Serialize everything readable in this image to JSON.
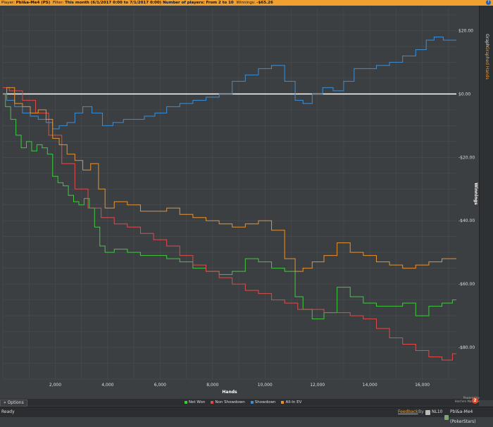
{
  "topbar": {
    "player_label": "Player:",
    "player_value": "Pbl&a-Me4 (PS)",
    "filter_label": "Filter:",
    "filter_value": "This month (6/1/2017 0:00 to 7/1/2017 0:00) Number of players: From 2 to 10",
    "winnings_label": "Winnings:",
    "winnings_value": "-$65.26",
    "help_icon": "?"
  },
  "rightbar": {
    "graph_tab": "Graph",
    "graphed_tab": "Graphed Hands"
  },
  "options_label": "Options",
  "hm_logo_text_1": "Powered by",
  "hm_logo_text_2": "Hold'em Manager",
  "hm_badge": "2",
  "status": {
    "ready": "Ready",
    "feedback": "Feedback",
    "by": "By",
    "site_label": "NL10",
    "player_label": "Pbl&a-Me4 (PokerStars)"
  },
  "chart_data": {
    "type": "line",
    "xlabel": "Hands",
    "ylabel": "Winnings",
    "xlim": [
      0,
      17300
    ],
    "ylim": [
      -90,
      27
    ],
    "x_ticks": [
      2000,
      4000,
      6000,
      8000,
      10000,
      12000,
      14000,
      16000
    ],
    "x_tick_labels": [
      "2,000",
      "4,000",
      "6,000",
      "8,000",
      "10,000",
      "12,000",
      "14,000",
      "16,000"
    ],
    "y_ticks": [
      20,
      0,
      -20,
      -40,
      -60,
      -80
    ],
    "y_tick_labels": [
      "$20.00",
      "$0.00",
      "-$20.00",
      "-$40.00",
      "-$60.00",
      "-$80.00"
    ],
    "grid": true,
    "legend": "bottom-center",
    "series": [
      {
        "name": "Net Won",
        "color": "#3ccc3c",
        "x": [
          0,
          200,
          400,
          600,
          800,
          1000,
          1200,
          1400,
          1600,
          1800,
          2000,
          2200,
          2400,
          2600,
          2800,
          3000,
          3200,
          3400,
          3600,
          3800,
          4000,
          4500,
          5000,
          5500,
          6000,
          6500,
          7000,
          7500,
          8000,
          8500,
          9000,
          9500,
          10000,
          10500,
          11000,
          11300,
          11600,
          12000,
          12500,
          13000,
          13500,
          14000,
          14500,
          15000,
          15500,
          16000,
          16500,
          17000,
          17300
        ],
        "y": [
          0,
          -4,
          -8,
          -13,
          -17,
          -15,
          -18,
          -16,
          -17,
          -19,
          -26,
          -28,
          -29,
          -32,
          -34,
          -35,
          -33,
          -36,
          -42,
          -48,
          -50,
          -49,
          -50,
          -51,
          -51,
          -52,
          -53,
          -55,
          -56,
          -57,
          -56,
          -52,
          -53,
          -55,
          -56,
          -64,
          -68,
          -71,
          -69,
          -61,
          -64,
          -66,
          -67,
          -67,
          -66,
          -70,
          -67,
          -66,
          -65
        ]
      },
      {
        "name": "Non Showdown",
        "color": "#e04a4a",
        "x": [
          0,
          500,
          1000,
          1500,
          2000,
          2500,
          3000,
          3500,
          4000,
          4500,
          5000,
          5500,
          6000,
          6500,
          7000,
          7500,
          8000,
          8500,
          9000,
          9500,
          10000,
          10500,
          11000,
          11500,
          12000,
          12500,
          13000,
          13500,
          14000,
          14500,
          15000,
          15500,
          16000,
          16500,
          17000,
          17300
        ],
        "y": [
          2,
          1,
          -2,
          -6,
          -13,
          -22,
          -30,
          -36,
          -39,
          -41,
          -42,
          -44,
          -46,
          -48,
          -51,
          -54,
          -56,
          -58,
          -60,
          -62,
          -63,
          -65,
          -66,
          -68,
          -68,
          -69,
          -69,
          -70,
          -71,
          -74,
          -77,
          -79,
          -81,
          -83,
          -84,
          -82
        ]
      },
      {
        "name": "Showdown",
        "color": "#3a8fd8",
        "x": [
          0,
          300,
          600,
          900,
          1200,
          1500,
          1800,
          2000,
          2300,
          2600,
          2900,
          3200,
          3600,
          4000,
          4400,
          4800,
          5200,
          5600,
          6000,
          6500,
          7000,
          7500,
          8000,
          8500,
          9000,
          9500,
          10000,
          10500,
          11000,
          11300,
          11600,
          12000,
          12400,
          12800,
          13200,
          13600,
          14000,
          14500,
          15000,
          15500,
          16000,
          16300,
          16600,
          17000,
          17300
        ],
        "y": [
          0,
          -2,
          -4,
          -6,
          -7,
          -8,
          -9,
          -11,
          -10,
          -9,
          -6,
          -4,
          -6,
          -10,
          -9,
          -8,
          -8,
          -7,
          -6,
          -4,
          -3,
          -2,
          -1,
          0,
          4,
          6,
          8,
          9,
          4,
          -2,
          -3,
          0,
          2,
          1,
          4,
          8,
          8,
          9,
          10,
          12,
          14,
          17,
          18,
          17,
          17
        ]
      },
      {
        "name": "All-In EV",
        "color": "#e8922e",
        "x": [
          0,
          300,
          600,
          900,
          1200,
          1500,
          1800,
          2000,
          2300,
          2600,
          2900,
          3200,
          3500,
          3800,
          4000,
          4500,
          5000,
          5500,
          6000,
          6500,
          7000,
          7500,
          8000,
          8500,
          9000,
          9500,
          10000,
          10500,
          11000,
          11300,
          11600,
          12000,
          12500,
          13000,
          13500,
          14000,
          14500,
          15000,
          15500,
          16000,
          16500,
          17000,
          17300
        ],
        "y": [
          0,
          2,
          -3,
          -4,
          -6,
          -5,
          -8,
          -14,
          -16,
          -19,
          -21,
          -24,
          -22,
          -30,
          -36,
          -34,
          -35,
          -37,
          -37,
          -36,
          -38,
          -39,
          -40,
          -41,
          -42,
          -41,
          -40,
          -43,
          -52,
          -56,
          -55,
          -53,
          -51,
          -47,
          -50,
          -51,
          -53,
          -54,
          -55,
          -54,
          -53,
          -52,
          -52
        ]
      }
    ]
  }
}
